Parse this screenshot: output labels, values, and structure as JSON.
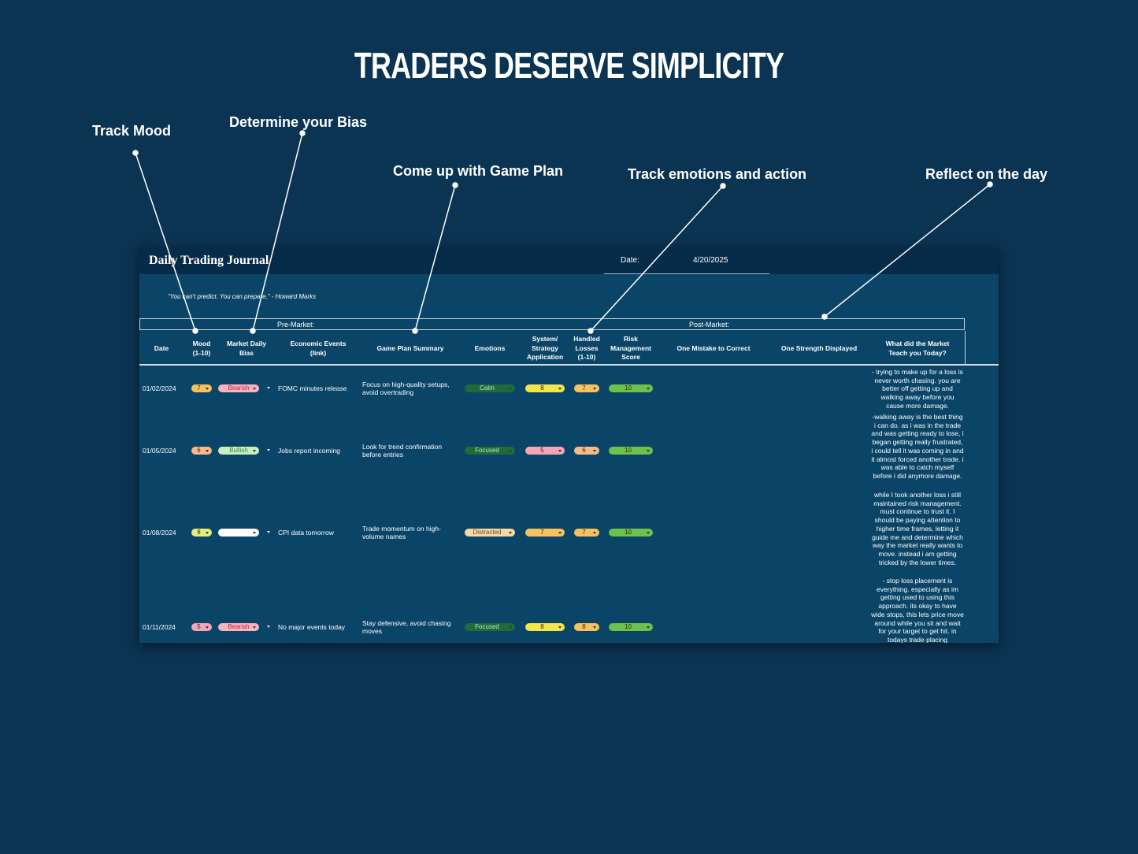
{
  "header": {
    "title": "TRADERS DESERVE SIMPLICITY"
  },
  "annotations": [
    "Track Mood",
    "Determine your Bias",
    "Come up with Game Plan",
    "Track emotions and action",
    "Reflect on the day"
  ],
  "journal": {
    "title": "Daily Trading Journal",
    "date_label": "Date:",
    "date_value": "4/20/2025",
    "quote": "“You can't predict. You can prepare.” - Howard Marks",
    "pre_market": "Pre-Market:",
    "post_market": "Post-Market:",
    "columns": [
      "Date",
      "Mood (1-10)",
      "Market Daily Bias",
      "Economic Events (link)",
      "Game Plan Summary",
      "Emotions",
      "System/ Strategy Application",
      "Handled Losses (1-10)",
      "Risk Management Score",
      "One Mistake to Correct",
      "One Strength Displayed",
      "What did the Market Teach you Today?"
    ],
    "rows": [
      {
        "date": "01/02/2024",
        "mood": {
          "text": "7",
          "color": "#f7c25e"
        },
        "bias": {
          "text": "Bearish",
          "color": "#f6b3c0",
          "text_color": "#c0282e"
        },
        "events": "FOMC minutes release",
        "plan": "Focus on high-quality setups, avoid overtrading",
        "emotions": {
          "text": "Calm",
          "color": "#1f6b3c",
          "text_color": "#b9e6c4"
        },
        "system": {
          "text": "8",
          "color": "#f1e64a"
        },
        "losses": {
          "text": "7",
          "color": "#f7c25e"
        },
        "risk": {
          "text": "10",
          "color": "#6cc24a"
        },
        "reflection": "- trying to make up for a loss is never worth chasing. you are better off getting up and walking away before you cause more damage."
      },
      {
        "date": "01/05/2024",
        "mood": {
          "text": "6",
          "color": "#f9b98a"
        },
        "bias": {
          "text": "Bullish",
          "color": "#c8efc0",
          "text_color": "#2f8a3a"
        },
        "events": "Jobs report incoming",
        "plan": "Look for trend confirmation before entries",
        "emotions": {
          "text": "Focused",
          "color": "#1f6b3c",
          "text_color": "#b9e6c4"
        },
        "system": {
          "text": "5",
          "color": "#f4a6b8"
        },
        "losses": {
          "text": "6",
          "color": "#f9b98a"
        },
        "risk": {
          "text": "10",
          "color": "#6cc24a"
        },
        "reflection": "-walking away is the best thing i can do. as i was in the trade and was getting ready to lose, i began getting really frustrated, i could tell it was coming in and it almost forced another trade. i was able to catch myself before i did anymore damage."
      },
      {
        "date": "01/08/2024",
        "mood": {
          "text": "8",
          "color": "#e4ee7a"
        },
        "bias": {
          "text": null,
          "color": "#ffffff"
        },
        "events": "CPI data tomorrow",
        "plan": "Trade momentum on high-volume names",
        "emotions": {
          "text": "Distracted",
          "color": "#f8d7a6",
          "text_color": "#6b4a1f"
        },
        "system": {
          "text": "7",
          "color": "#f7c25e"
        },
        "losses": {
          "text": "7",
          "color": "#f7c25e"
        },
        "risk": {
          "text": "10",
          "color": "#6cc24a"
        },
        "reflection": "while I took another loss i still maintained risk management. must continue to trust it. I should be paying attention to higher time frames, letting it guide me and determine which way the market really wants to move. instead i am getting tricked by the lower times."
      },
      {
        "date": "01/11/2024",
        "mood": {
          "text": "5",
          "color": "#f4a6b8"
        },
        "bias": {
          "text": "Bearish",
          "color": "#f6b3c0",
          "text_color": "#c0282e"
        },
        "events": "No major events today",
        "plan": "Stay defensive, avoid chasing moves",
        "emotions": {
          "text": "Focused",
          "color": "#1f6b3c",
          "text_color": "#b9e6c4"
        },
        "system": {
          "text": "8",
          "color": "#f1e64a"
        },
        "losses": {
          "text": "8",
          "color": "#f7c25e"
        },
        "risk": {
          "text": "10",
          "color": "#6cc24a"
        },
        "reflection": "- stop loss placement is everything. especially as im getting used to using this approach. its okay to have wide stops, this lets price move around while you sit and wait for your target to get hit. in todays trade placing"
      }
    ]
  }
}
